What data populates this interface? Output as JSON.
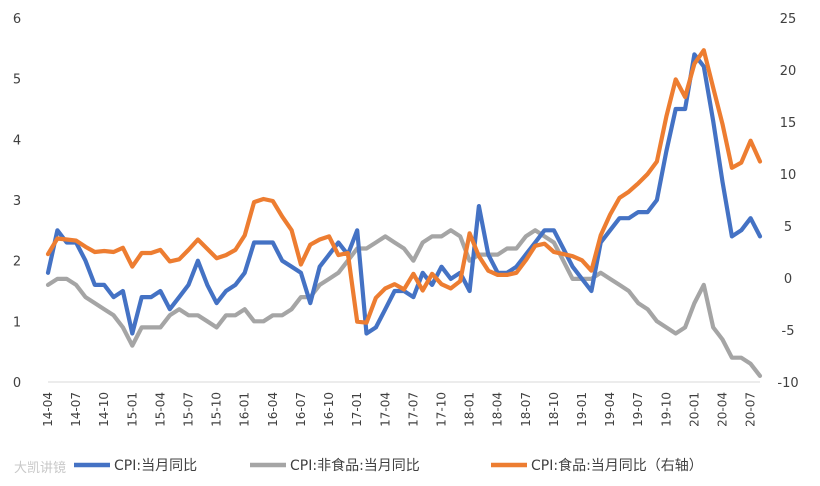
{
  "watermark": "大凯讲镜",
  "chart_data": {
    "type": "line",
    "title": "",
    "x": [
      "14-04",
      "14-05",
      "14-06",
      "14-07",
      "14-08",
      "14-09",
      "14-10",
      "14-11",
      "14-12",
      "15-01",
      "15-02",
      "15-03",
      "15-04",
      "15-05",
      "15-06",
      "15-07",
      "15-08",
      "15-09",
      "15-10",
      "15-11",
      "15-12",
      "16-01",
      "16-02",
      "16-03",
      "16-04",
      "16-05",
      "16-06",
      "16-07",
      "16-08",
      "16-09",
      "16-10",
      "16-11",
      "16-12",
      "17-01",
      "17-02",
      "17-03",
      "17-04",
      "17-05",
      "17-06",
      "17-07",
      "17-08",
      "17-09",
      "17-10",
      "17-11",
      "17-12",
      "18-01",
      "18-02",
      "18-03",
      "18-04",
      "18-05",
      "18-06",
      "18-07",
      "18-08",
      "18-09",
      "18-10",
      "18-11",
      "18-12",
      "19-01",
      "19-02",
      "19-03",
      "19-04",
      "19-05",
      "19-06",
      "19-07",
      "19-08",
      "19-09",
      "19-10",
      "19-11",
      "19-12",
      "20-01",
      "20-02",
      "20-03",
      "20-04",
      "20-05",
      "20-06",
      "20-07",
      "20-08"
    ],
    "xtick_labels": [
      "14-04",
      "14-07",
      "14-10",
      "15-01",
      "15-04",
      "15-07",
      "15-10",
      "16-01",
      "16-04",
      "16-07",
      "16-10",
      "17-01",
      "17-04",
      "17-07",
      "17-10",
      "18-01",
      "18-04",
      "18-07",
      "18-10",
      "19-01",
      "19-04",
      "19-07",
      "19-10",
      "20-01",
      "20-04",
      "20-07"
    ],
    "y_left": {
      "ylim": [
        0,
        6
      ],
      "ticks": [
        0,
        1,
        2,
        3,
        4,
        5,
        6
      ]
    },
    "y_right": {
      "ylim": [
        -10,
        25
      ],
      "ticks": [
        -10,
        -5,
        0,
        5,
        10,
        15,
        20,
        25
      ]
    },
    "series": [
      {
        "name": "CPI:当月同比",
        "axis": "left",
        "color": "#4472C4",
        "values": [
          1.8,
          2.5,
          2.3,
          2.3,
          2.0,
          1.6,
          1.6,
          1.4,
          1.5,
          0.8,
          1.4,
          1.4,
          1.5,
          1.2,
          1.4,
          1.6,
          2.0,
          1.6,
          1.3,
          1.5,
          1.6,
          1.8,
          2.3,
          2.3,
          2.3,
          2.0,
          1.9,
          1.8,
          1.3,
          1.9,
          2.1,
          2.3,
          2.1,
          2.5,
          0.8,
          0.9,
          1.2,
          1.5,
          1.5,
          1.4,
          1.8,
          1.6,
          1.9,
          1.7,
          1.8,
          1.5,
          2.9,
          2.1,
          1.8,
          1.8,
          1.9,
          2.1,
          2.3,
          2.5,
          2.5,
          2.2,
          1.9,
          1.7,
          1.5,
          2.3,
          2.5,
          2.7,
          2.7,
          2.8,
          2.8,
          3.0,
          3.8,
          4.5,
          4.5,
          5.4,
          5.2,
          4.3,
          3.3,
          2.4,
          2.5,
          2.7,
          2.4
        ]
      },
      {
        "name": "CPI:非食品:当月同比",
        "axis": "left",
        "color": "#A5A5A5",
        "values": [
          1.6,
          1.7,
          1.7,
          1.6,
          1.4,
          1.3,
          1.2,
          1.1,
          0.9,
          0.6,
          0.9,
          0.9,
          0.9,
          1.1,
          1.2,
          1.1,
          1.1,
          1.0,
          0.9,
          1.1,
          1.1,
          1.2,
          1.0,
          1.0,
          1.1,
          1.1,
          1.2,
          1.4,
          1.4,
          1.6,
          1.7,
          1.8,
          2.0,
          2.2,
          2.2,
          2.3,
          2.4,
          2.3,
          2.2,
          2.0,
          2.3,
          2.4,
          2.4,
          2.5,
          2.4,
          2.0,
          2.1,
          2.1,
          2.1,
          2.2,
          2.2,
          2.4,
          2.5,
          2.4,
          2.3,
          2.0,
          1.7,
          1.7,
          1.7,
          1.8,
          1.7,
          1.6,
          1.5,
          1.3,
          1.2,
          1.0,
          0.9,
          0.8,
          0.9,
          1.3,
          1.6,
          0.9,
          0.7,
          0.4,
          0.4,
          0.3,
          0.1
        ]
      },
      {
        "name": "CPI:食品:当月同比（右轴）",
        "axis": "right",
        "color": "#ED7D31",
        "values": [
          2.3,
          3.8,
          3.7,
          3.6,
          3.0,
          2.5,
          2.6,
          2.5,
          2.9,
          1.1,
          2.4,
          2.4,
          2.7,
          1.6,
          1.8,
          2.7,
          3.7,
          2.8,
          1.9,
          2.2,
          2.7,
          4.1,
          7.3,
          7.6,
          7.4,
          5.9,
          4.6,
          1.3,
          3.2,
          3.7,
          4.0,
          2.2,
          2.4,
          -4.2,
          -4.3,
          -1.9,
          -1.0,
          -0.6,
          -1.1,
          0.4,
          -1.2,
          0.4,
          -0.6,
          -1.0,
          -0.3,
          4.3,
          2.1,
          0.7,
          0.3,
          0.3,
          0.5,
          1.7,
          3.1,
          3.3,
          2.5,
          2.3,
          2.1,
          1.7,
          0.7,
          4.1,
          6.1,
          7.7,
          8.3,
          9.1,
          10.0,
          11.2,
          15.5,
          19.1,
          17.4,
          20.6,
          21.9,
          18.3,
          14.8,
          10.6,
          11.1,
          13.2,
          11.2
        ]
      }
    ]
  }
}
